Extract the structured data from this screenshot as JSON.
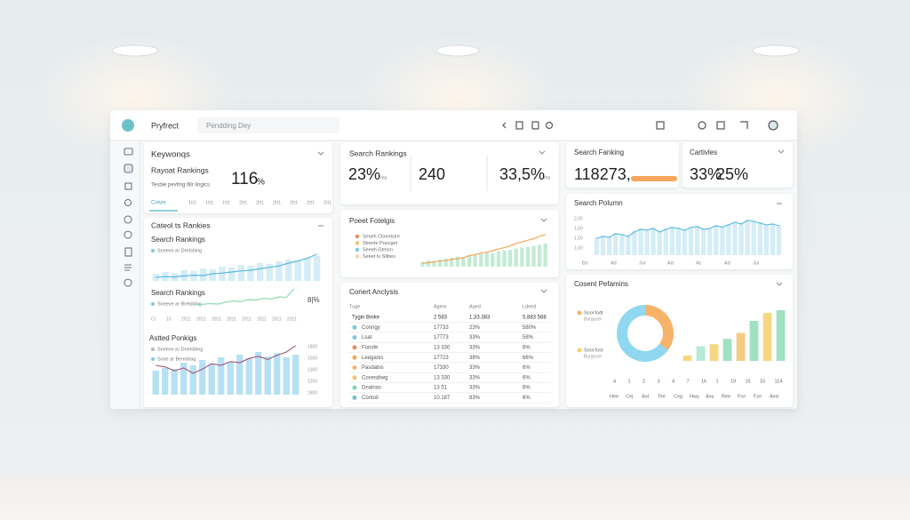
{
  "topbar": {
    "brand": "Pryfrect",
    "search": "Pendding Dey"
  },
  "keywords": {
    "title": "Keywonqs",
    "subtitle": "Rayoat Rankings",
    "note": "Tesbie pevfing fillr lingics",
    "value": "116",
    "unit": "%",
    "tab": "Coivie",
    "axis": [
      "1tt1",
      "1tt1",
      "1tt1",
      "2tt1",
      "2tt1",
      "2tt1",
      "2tt1",
      "2tt1",
      "2tt1"
    ]
  },
  "ranks": {
    "title": "Cateol ts Rankies",
    "chart1": {
      "title": "Search Rankings",
      "legend": "Sneeve ar Dretsbing",
      "ylim": [
        0,
        100
      ],
      "bars": [
        20,
        25,
        22,
        30,
        28,
        35,
        32,
        40,
        38,
        45,
        42,
        50,
        48,
        55,
        60,
        58,
        65,
        70
      ],
      "line": [
        10,
        12,
        11,
        14,
        16,
        15,
        20,
        22,
        25,
        28,
        30,
        34,
        38,
        42,
        50,
        56,
        64,
        75
      ]
    },
    "chart2": {
      "title": "Search Rankings",
      "legend": "Sneeve ar Bretsbing",
      "value": "8|%",
      "ylim": [
        0,
        100
      ],
      "line": [
        30,
        32,
        35,
        33,
        40,
        45,
        42,
        50,
        48,
        55,
        52,
        60,
        58,
        90
      ],
      "xaxis": [
        "Ct",
        "10",
        "2011",
        "2011",
        "2011",
        "2011",
        "2011",
        "2011",
        "2011",
        "2011"
      ]
    },
    "chart3": {
      "title": "Astted Ponkigs",
      "legend": [
        "Sneeve ar Dnetsbing",
        "Sose ar Benisbag"
      ],
      "yaxis": [
        "1800",
        "1500",
        "1300",
        "1200",
        "1800"
      ],
      "ylim": [
        0,
        100
      ],
      "bars": [
        45,
        50,
        48,
        60,
        55,
        65,
        58,
        70,
        62,
        75,
        68,
        80,
        72,
        78,
        70,
        75
      ],
      "line": [
        55,
        52,
        45,
        50,
        40,
        48,
        58,
        55,
        62,
        60,
        68,
        72,
        66,
        74,
        80,
        92
      ]
    }
  },
  "summary": {
    "title": "Search Rankings",
    "stats": [
      {
        "value": "23%",
        "note": "ms"
      },
      {
        "value": "240"
      },
      {
        "value": "33,5%",
        "note": "ms"
      }
    ]
  },
  "trend": {
    "title": "Poeet Fotelgis",
    "legend": [
      {
        "name": "Seseh Clonntsire",
        "color": "#f08a5d"
      },
      {
        "name": "Stnerle Puocget",
        "color": "#f5c26b"
      },
      {
        "name": "Seeeh Gtrhsn",
        "color": "#7ec8e3"
      },
      {
        "name": "Seeet Is Sitbes",
        "color": "#f5d5a8"
      }
    ],
    "ylim": [
      0,
      100
    ],
    "bars": [
      12,
      15,
      14,
      18,
      20,
      22,
      25,
      24,
      28,
      30,
      32,
      35,
      34,
      38,
      40,
      42,
      45,
      48,
      50,
      52,
      55,
      58
    ],
    "line": [
      8,
      10,
      12,
      14,
      15,
      18,
      20,
      22,
      28,
      30,
      34,
      36,
      40,
      44,
      48,
      52,
      58,
      62,
      66,
      70,
      76,
      80
    ]
  },
  "table": {
    "title": "Conert Anclysis",
    "header": [
      "Tuge",
      "Agere",
      "Aqed",
      "Ldeed"
    ],
    "rows": [
      [
        "Tygin Bnike",
        "2 583",
        "1,33.383",
        "5,883 588"
      ],
      [
        "Conngy",
        "17733",
        "23%",
        "580%"
      ],
      [
        "Lsat",
        "17773",
        "33%",
        "58%"
      ],
      [
        "Fonsfe",
        "13 330",
        "33%",
        "6%"
      ],
      [
        "Leeganis",
        "17723",
        "38%",
        "66%"
      ],
      [
        "Pasdabis",
        "17330",
        "33%",
        "6%"
      ],
      [
        "Cosesdiwg",
        "13 330",
        "33%",
        "6%"
      ],
      [
        "Dnalnas",
        "13 51",
        "33%",
        "6%"
      ],
      [
        "Contoil",
        "10.187",
        "83%",
        "6%"
      ]
    ],
    "dots": [
      null,
      "#7ec8e3",
      "#7ec8e3",
      "#f08a5d",
      "#f5a65b",
      "#f5b36b",
      "#f5c26b",
      "#7fd3b0",
      "#6cc4c9"
    ]
  },
  "ranking": {
    "title": "Search Fanking",
    "value": "118273,"
  },
  "activities": {
    "title": "Cartivles",
    "values": [
      "33%",
      "25%"
    ]
  },
  "volume": {
    "title": "Search Polumn",
    "yaxis": [
      "2,00",
      "1,00",
      "1,00",
      "1,00"
    ],
    "xaxis": [
      "Bo",
      "Ad",
      "Jul",
      "Ad",
      "Ac",
      "Ad",
      "Jul"
    ],
    "ylim": [
      0,
      100
    ],
    "bars": [
      40,
      45,
      42,
      50,
      48,
      44,
      55,
      60,
      58,
      62,
      55,
      60,
      65,
      62,
      58,
      64,
      66,
      60,
      62,
      68,
      65,
      70,
      75,
      72,
      78,
      76,
      74,
      70,
      72,
      68
    ],
    "line": [
      38,
      42,
      40,
      48,
      46,
      42,
      52,
      58,
      56,
      60,
      52,
      58,
      62,
      60,
      56,
      62,
      64,
      58,
      60,
      66,
      63,
      68,
      74,
      70,
      78,
      76,
      72,
      68,
      70,
      66
    ]
  },
  "content": {
    "title": "Cosent Pefamins",
    "legend": [
      {
        "name": "Sool fodt",
        "sub": "Burgosei",
        "color": "#f5b36b"
      },
      {
        "name": "Sool fost",
        "sub": "Burgosei",
        "color": "#f5d06b"
      }
    ],
    "donut": [
      35,
      65
    ],
    "donut_colors": [
      "#f7b26a",
      "#8fd8ef"
    ],
    "ylim": [
      0,
      100
    ],
    "bars": [
      8,
      22,
      25,
      33,
      42,
      60,
      72,
      76
    ],
    "bar_colors": [
      "#f5d06b",
      "#a8e6cf",
      "#f5d06b",
      "#8fdcb4",
      "#f5c26b",
      "#8fdcb4",
      "#f5d06b",
      "#8fdcb4"
    ],
    "xaxis": [
      "4",
      "1",
      "2",
      "3",
      "4",
      "7",
      "16",
      "1",
      "19",
      "15",
      "15",
      "114"
    ],
    "xaxis2": [
      "Hee",
      "Cej",
      "Aol",
      "Tee",
      "Ceg",
      "Hwy",
      "Aoy",
      "Ree",
      "Fce",
      "Fze",
      "Aed"
    ]
  }
}
